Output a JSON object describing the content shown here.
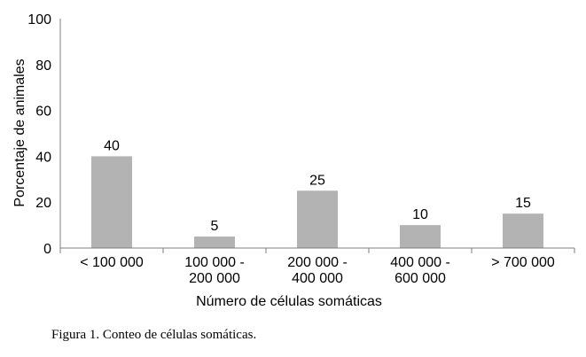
{
  "chart_data": {
    "type": "bar",
    "categories": [
      [
        "< 100 000"
      ],
      [
        "100 000 -",
        "200 000"
      ],
      [
        "200 000 -",
        "400 000"
      ],
      [
        "400 000 -",
        "600 000"
      ],
      [
        "> 700 000"
      ]
    ],
    "values": [
      40,
      5,
      25,
      10,
      15
    ],
    "data_labels": [
      "40",
      "5",
      "25",
      "10",
      "15"
    ],
    "xlabel": "Número de células somáticas",
    "ylabel": "Porcentaje de animales",
    "ylim": [
      0,
      100
    ],
    "yticks": [
      "0",
      "20",
      "40",
      "60",
      "80",
      "100"
    ],
    "grid": false,
    "legend": "none",
    "bar_color": "#b3b3b3",
    "axis_color": "#7f7f7f"
  },
  "caption": "Figura 1. Conteo de células somáticas."
}
